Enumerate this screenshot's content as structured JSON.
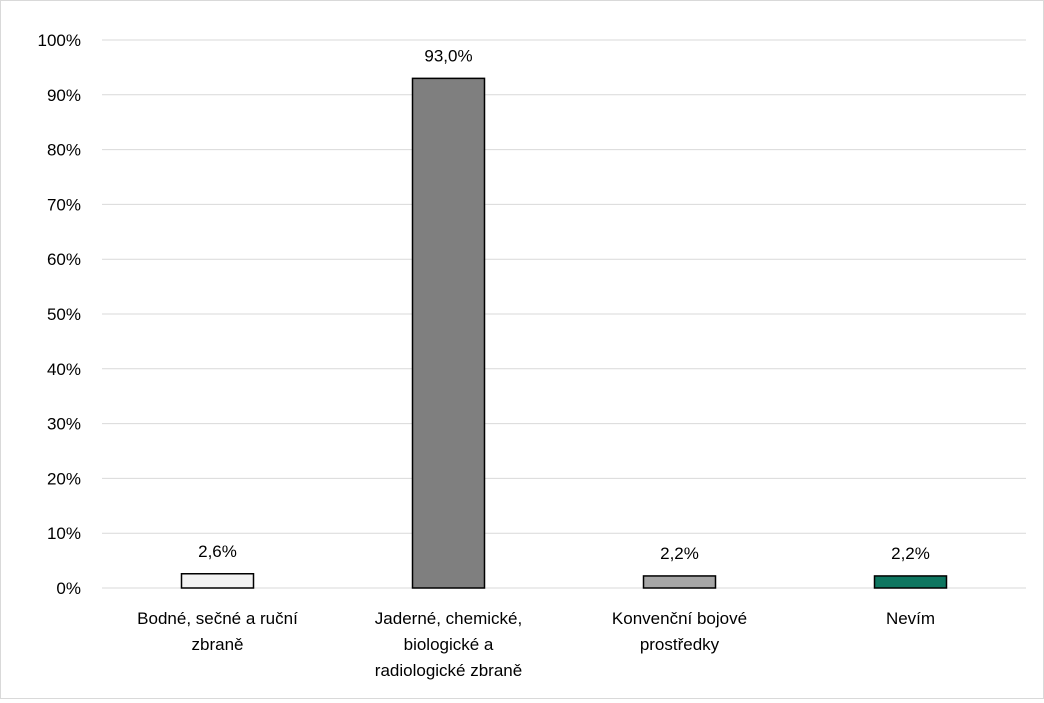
{
  "chart_data": {
    "type": "bar",
    "categories": [
      [
        "Bodné, sečné a ruční",
        "zbraně"
      ],
      [
        "Jaderné, chemické,",
        "biologické a",
        "radiologické zbraně"
      ],
      [
        "Konvenční bojové",
        "prostředky"
      ],
      [
        "Nevím"
      ]
    ],
    "values": [
      2.6,
      93.0,
      2.2,
      2.2
    ],
    "data_labels": [
      "2,6%",
      "93,0%",
      "2,2%",
      "2,2%"
    ],
    "colors": [
      "#f2f2f2",
      "#7f7f7f",
      "#a6a6a6",
      "#0e7660"
    ],
    "ylim": [
      0,
      100
    ],
    "yticks": [
      0,
      10,
      20,
      30,
      40,
      50,
      60,
      70,
      80,
      90,
      100
    ],
    "ytick_labels": [
      "0%",
      "10%",
      "20%",
      "30%",
      "40%",
      "50%",
      "60%",
      "70%",
      "80%",
      "90%",
      "100%"
    ],
    "grid": true,
    "title": "",
    "xlabel": "",
    "ylabel": ""
  }
}
